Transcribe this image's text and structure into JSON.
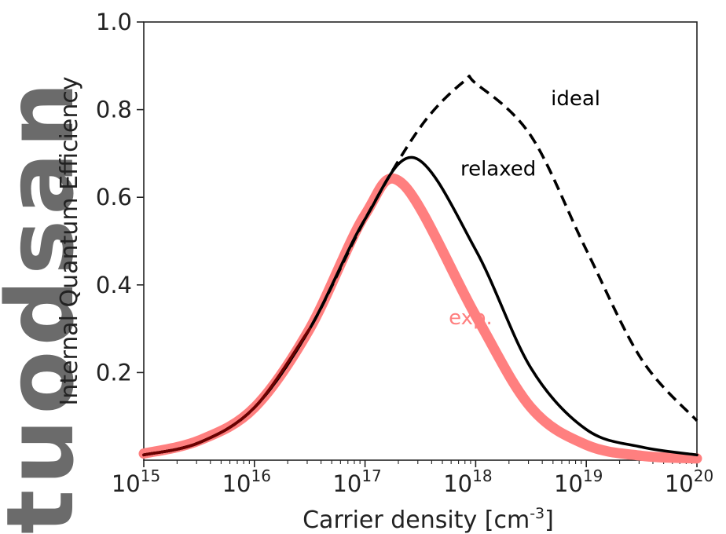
{
  "chart_data": {
    "type": "line",
    "xlabel": "Carrier density [cm",
    "xlabel_superscript": "-3",
    "xlabel_suffix": "]",
    "ylabel": "Internal Quantum Efficiency",
    "x_scale": "log",
    "xlim": [
      1000000000000000.0,
      1e+20
    ],
    "ylim": [
      0,
      1.0
    ],
    "x_tick_base": "10",
    "x_ticks": [
      {
        "value": 1000000000000000.0,
        "exponent": "15"
      },
      {
        "value": 1e+16,
        "exponent": "16"
      },
      {
        "value": 1e+17,
        "exponent": "17"
      },
      {
        "value": 1e+18,
        "exponent": "18"
      },
      {
        "value": 1e+19,
        "exponent": "19"
      },
      {
        "value": 1e+20,
        "exponent": "20"
      }
    ],
    "y_ticks": [
      {
        "value": 0.2,
        "label": "0.2"
      },
      {
        "value": 0.4,
        "label": "0.4"
      },
      {
        "value": 0.6,
        "label": "0.6"
      },
      {
        "value": 0.8,
        "label": "0.8"
      },
      {
        "value": 1.0,
        "label": "1.0"
      }
    ],
    "grid": false,
    "legend": "none",
    "series": [
      {
        "name": "ideal",
        "style": "dashed",
        "color": "#000000",
        "points": [
          [
            1000000000000000.0,
            0.012
          ],
          [
            3160000000000000.0,
            0.04
          ],
          [
            1e+16,
            0.12
          ],
          [
            3.16e+16,
            0.3
          ],
          [
            1e+17,
            0.55
          ],
          [
            3.16e+17,
            0.76
          ],
          [
            7.9e+17,
            0.865
          ],
          [
            1e+18,
            0.86
          ],
          [
            3.16e+18,
            0.74
          ],
          [
            1e+19,
            0.48
          ],
          [
            3.16e+19,
            0.23
          ],
          [
            1e+20,
            0.09
          ]
        ]
      },
      {
        "name": "relaxed",
        "style": "solid",
        "color": "#000000",
        "points": [
          [
            1000000000000000.0,
            0.012
          ],
          [
            3160000000000000.0,
            0.04
          ],
          [
            1e+16,
            0.12
          ],
          [
            3.16e+16,
            0.3
          ],
          [
            1e+17,
            0.55
          ],
          [
            2.8e+17,
            0.69
          ],
          [
            1e+18,
            0.48
          ],
          [
            3.16e+18,
            0.21
          ],
          [
            1e+19,
            0.07
          ],
          [
            3.16e+19,
            0.03
          ],
          [
            1e+20,
            0.012
          ]
        ]
      },
      {
        "name": "exp.",
        "style": "solid-thick",
        "color": "#ff7f7f",
        "points": [
          [
            1000000000000000.0,
            0.015
          ],
          [
            3160000000000000.0,
            0.045
          ],
          [
            1e+16,
            0.12
          ],
          [
            3.16e+16,
            0.3
          ],
          [
            1e+17,
            0.56
          ],
          [
            2.2e+17,
            0.63
          ],
          [
            1e+18,
            0.33
          ],
          [
            3.16e+18,
            0.12
          ],
          [
            1e+19,
            0.035
          ],
          [
            3.16e+19,
            0.01
          ],
          [
            1e+20,
            0.004
          ]
        ]
      }
    ],
    "annotations": [
      {
        "text": "ideal",
        "x": 8e+18,
        "y": 0.81,
        "color": "#000000"
      },
      {
        "text": "relaxed",
        "x": 1.6e+18,
        "y": 0.65,
        "color": "#000000"
      },
      {
        "text": "exp.",
        "x": 9e+17,
        "y": 0.31,
        "color": "#ff7f7f"
      }
    ]
  },
  "watermark": {
    "text": "tuodsan",
    "color": "#6b6b6b"
  }
}
